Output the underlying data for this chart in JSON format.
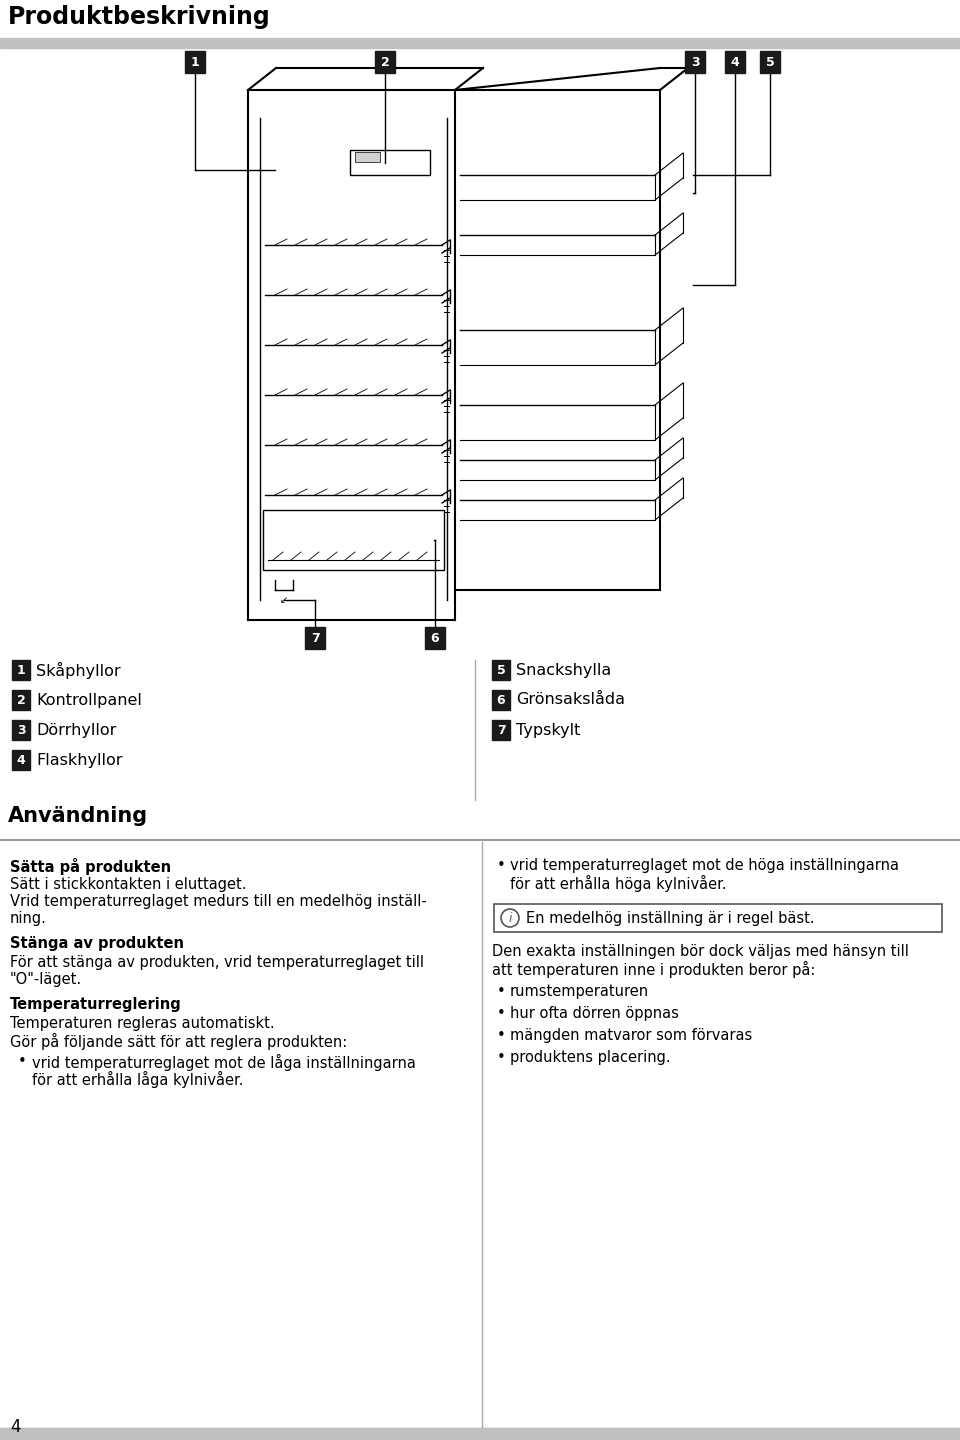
{
  "title": "Produktbeskrivning",
  "title_fontsize": 17,
  "header_bar_color": "#c0c0c0",
  "background_color": "#ffffff",
  "number_box_color": "#1a1a1a",
  "number_text_color": "#ffffff",
  "left_items": [
    {
      "num": "1",
      "text": "Skåphyllor"
    },
    {
      "num": "2",
      "text": "Kontrollpanel"
    },
    {
      "num": "3",
      "text": "Dörrhyllor"
    },
    {
      "num": "4",
      "text": "Flaskhyllor"
    }
  ],
  "right_items": [
    {
      "num": "5",
      "text": "Snackshylla"
    },
    {
      "num": "6",
      "text": "Grönsakslåda"
    },
    {
      "num": "7",
      "text": "Typskylt"
    }
  ],
  "section_anvandning": "Användning",
  "left_col": {
    "b1_title": "Sätta på produkten",
    "b1_lines": [
      "Sätt i stickkontakten i eluttaget.",
      "Vrid temperaturreglaget medurs till en medelhög inställ-",
      "ning."
    ],
    "b2_title": "Stänga av produkten",
    "b2_lines": [
      "För att stänga av produkten, vrid temperaturreglaget till",
      "\"O\"-läget."
    ],
    "b3_title": "Temperaturreglering",
    "b3_lines": [
      "Temperaturen regleras automatiskt.",
      "Gör på följande sätt för att reglera produkten:"
    ],
    "b3_bullet_lines": [
      "vrid temperaturreglaget mot de låga inställningarna",
      "för att erhålla låga kylnivåer."
    ]
  },
  "right_col": {
    "bullet1_lines": [
      "vrid temperaturreglaget mot de höga inställningarna",
      "för att erhålla höga kylnivåer."
    ],
    "info_text": "En medelhög inställning är i regel bäst.",
    "para_lines": [
      "Den exakta inställningen bör dock väljas med hänsyn till",
      "att temperaturen inne i produkten beror på:"
    ],
    "bullets": [
      "rumstemperaturen",
      "hur ofta dörren öppnas",
      "mängden matvaror som förvaras",
      "produktens placering."
    ]
  },
  "footer_num": "4"
}
